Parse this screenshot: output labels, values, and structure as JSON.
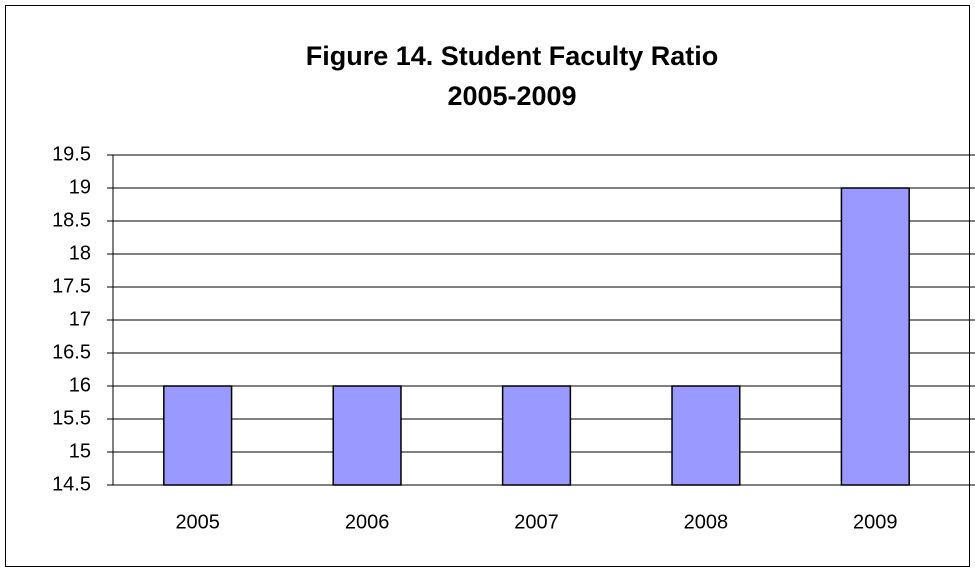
{
  "chart_data": {
    "type": "bar",
    "title": "Figure 14. Student Faculty Ratio",
    "subtitle": "2005-2009",
    "categories": [
      "2005",
      "2006",
      "2007",
      "2008",
      "2009"
    ],
    "values": [
      16,
      16,
      16,
      16,
      19
    ],
    "color": "#9999ff",
    "ylim": [
      14.5,
      19.5
    ],
    "yticks": [
      14.5,
      15,
      15.5,
      16,
      16.5,
      17,
      17.5,
      18,
      18.5,
      19,
      19.5
    ],
    "grid": true
  }
}
